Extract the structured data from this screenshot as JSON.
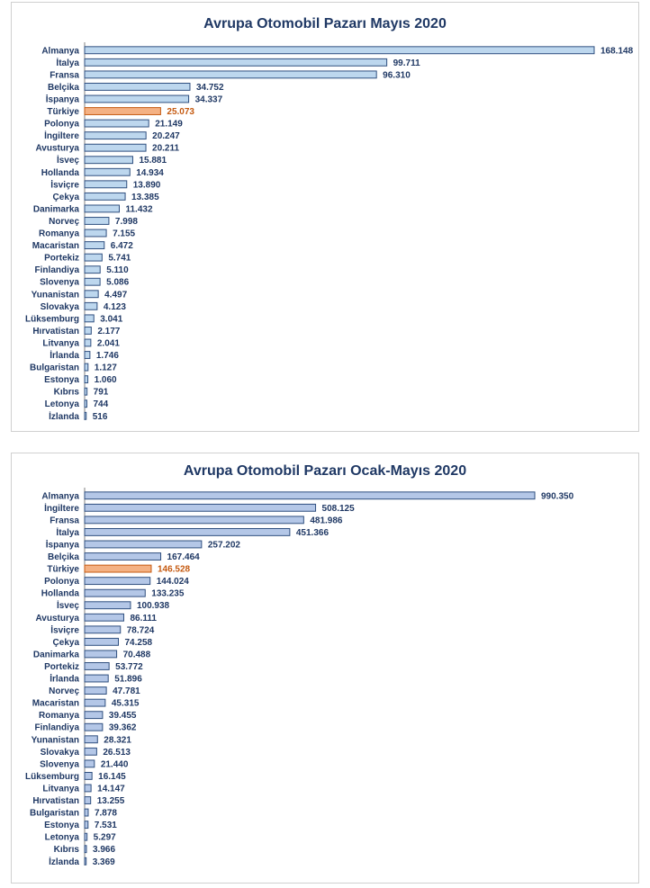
{
  "colors": {
    "bar_fill_1": "#bdd7ee",
    "bar_fill_2": "#b4c7e7",
    "bar_stroke": "#2f4f7f",
    "highlight_fill": "#f4b183",
    "highlight_stroke": "#c55a11",
    "highlight_text": "#c55a11",
    "text": "#1f3864",
    "axis": "#808080"
  },
  "chart_data": [
    {
      "type": "bar",
      "orientation": "horizontal",
      "title": "Avrupa Otomobil Pazarı Mayıs 2020",
      "highlight": "Türkiye",
      "categories": [
        "Almanya",
        "İtalya",
        "Fransa",
        "Belçika",
        "İspanya",
        "Türkiye",
        "Polonya",
        "İngiltere",
        "Avusturya",
        "İsveç",
        "Hollanda",
        "İsviçre",
        "Çekya",
        "Danimarka",
        "Norveç",
        "Romanya",
        "Macaristan",
        "Portekiz",
        "Finlandiya",
        "Slovenya",
        "Yunanistan",
        "Slovakya",
        "Lüksemburg",
        "Hırvatistan",
        "Litvanya",
        "İrlanda",
        "Bulgaristan",
        "Estonya",
        "Kıbrıs",
        "Letonya",
        "İzlanda"
      ],
      "values": [
        168148,
        99711,
        96310,
        34752,
        34337,
        25073,
        21149,
        20247,
        20211,
        15881,
        14934,
        13890,
        13385,
        11432,
        7998,
        7155,
        6472,
        5741,
        5110,
        5086,
        4497,
        4123,
        3041,
        2177,
        2041,
        1746,
        1127,
        1060,
        791,
        744,
        516
      ],
      "labels": [
        "168.148",
        "99.711",
        "96.310",
        "34.752",
        "34.337",
        "25.073",
        "21.149",
        "20.247",
        "20.211",
        "15.881",
        "14.934",
        "13.890",
        "13.385",
        "11.432",
        "7.998",
        "7.155",
        "6.472",
        "5.741",
        "5.110",
        "5.086",
        "4.497",
        "4.123",
        "3.041",
        "2.177",
        "2.041",
        "1.746",
        "1.127",
        "1.060",
        "791",
        "744",
        "516"
      ],
      "xlim": [
        0,
        168148
      ]
    },
    {
      "type": "bar",
      "orientation": "horizontal",
      "title": "Avrupa Otomobil Pazarı Ocak-Mayıs 2020",
      "highlight": "Türkiye",
      "categories": [
        "Almanya",
        "İngiltere",
        "Fransa",
        "İtalya",
        "İspanya",
        "Belçika",
        "Türkiye",
        "Polonya",
        "Hollanda",
        "İsveç",
        "Avusturya",
        "İsviçre",
        "Çekya",
        "Danimarka",
        "Portekiz",
        "İrlanda",
        "Norveç",
        "Macaristan",
        "Romanya",
        "Finlandiya",
        "Yunanistan",
        "Slovakya",
        "Slovenya",
        "Lüksemburg",
        "Litvanya",
        "Hırvatistan",
        "Bulgaristan",
        "Estonya",
        "Letonya",
        "Kıbrıs",
        "İzlanda"
      ],
      "values": [
        990350,
        508125,
        481986,
        451366,
        257202,
        167464,
        146528,
        144024,
        133235,
        100938,
        86111,
        78724,
        74258,
        70488,
        53772,
        51896,
        47781,
        45315,
        39455,
        39362,
        28321,
        26513,
        21440,
        16145,
        14147,
        13255,
        7878,
        7531,
        5297,
        3966,
        3369
      ],
      "labels": [
        "990.350",
        "508.125",
        "481.986",
        "451.366",
        "257.202",
        "167.464",
        "146.528",
        "144.024",
        "133.235",
        "100.938",
        "86.111",
        "78.724",
        "74.258",
        "70.488",
        "53.772",
        "51.896",
        "47.781",
        "45.315",
        "39.455",
        "39.362",
        "28.321",
        "26.513",
        "21.440",
        "16.145",
        "14.147",
        "13.255",
        "7.878",
        "7.531",
        "5.297",
        "3.966",
        "3.369"
      ],
      "xlim": [
        0,
        990350
      ]
    }
  ]
}
